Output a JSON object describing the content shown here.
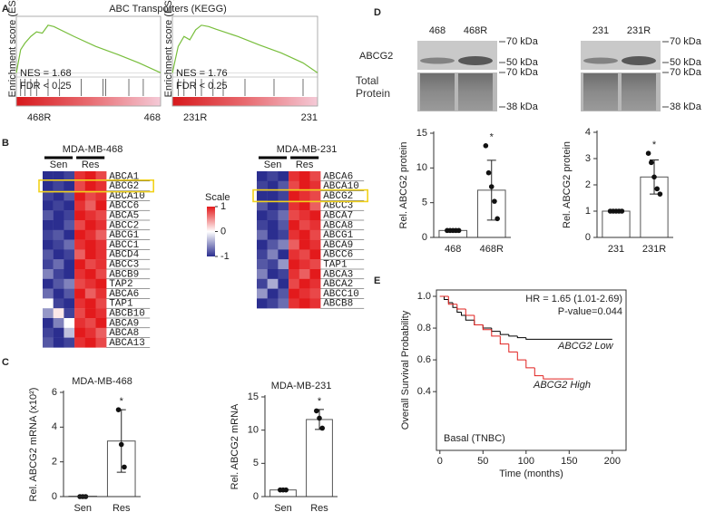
{
  "panel_labels": [
    "A",
    "B",
    "C",
    "D",
    "E"
  ],
  "chart_data": [
    {
      "type": "gsea",
      "title": "ABC Transporters (KEGG)",
      "plots": [
        {
          "y_label": "Enrichment score (ES)",
          "nes": "NES = 1.68",
          "fdr": "FDR < 0.25",
          "left_label": "468R",
          "right_label": "468",
          "color": "#78be3c",
          "xlim": [
            0,
            100
          ],
          "ylim": [
            -0.05,
            0.8
          ],
          "x": [
            0,
            3,
            6,
            10,
            14,
            18,
            22,
            26,
            40,
            55,
            70,
            85,
            100
          ],
          "es": [
            0,
            0.35,
            0.45,
            0.55,
            0.62,
            0.6,
            0.72,
            0.7,
            0.55,
            0.4,
            0.28,
            0.15,
            0
          ],
          "hits": [
            3,
            6,
            10,
            14,
            22,
            30,
            45,
            60,
            62,
            78,
            88
          ]
        },
        {
          "y_label": "Enrichment score (ES)",
          "nes": "NES = 1.76",
          "fdr": "FDR < 0.25",
          "left_label": "231R",
          "right_label": "231",
          "color": "#78be3c",
          "xlim": [
            0,
            100
          ],
          "ylim": [
            -0.05,
            0.8
          ],
          "x": [
            0,
            4,
            8,
            12,
            16,
            20,
            25,
            30,
            45,
            60,
            75,
            90,
            100
          ],
          "es": [
            0,
            0.4,
            0.55,
            0.5,
            0.65,
            0.72,
            0.7,
            0.66,
            0.55,
            0.42,
            0.3,
            0.15,
            0
          ],
          "hits": [
            4,
            8,
            16,
            20,
            28,
            35,
            50,
            70,
            90
          ]
        }
      ]
    },
    {
      "type": "heatmap",
      "title": "MDA-MB-468",
      "groups": [
        "Sen",
        "Res"
      ],
      "colors": [
        "#2b2e8f",
        "#ffffff",
        "#e31a1c"
      ],
      "scale_label": "Scale",
      "scale_ticks": [
        1,
        0,
        -1
      ],
      "genes": [
        "ABCA1",
        "ABCG2",
        "ABCA10",
        "ABCC6",
        "ABCA5",
        "ABCC2",
        "ABCG1",
        "ABCC1",
        "ABCD4",
        "ABCC3",
        "ABCB9",
        "TAP2",
        "ABCA6",
        "TAP1",
        "ABCB10",
        "ABCA9",
        "ABCA8",
        "ABCA13"
      ],
      "values": [
        [
          -1,
          -1,
          -0.9,
          0.9,
          1,
          0.8
        ],
        [
          -1,
          -0.9,
          -1,
          0.8,
          1,
          0.9
        ],
        [
          -0.9,
          -1,
          -0.8,
          1,
          0.8,
          0.9
        ],
        [
          -1,
          -0.9,
          -1,
          0.9,
          0.7,
          1
        ],
        [
          -0.8,
          -1,
          -0.9,
          1,
          0.9,
          0.8
        ],
        [
          -1,
          -1,
          -0.8,
          0.8,
          1,
          0.9
        ],
        [
          -0.9,
          -0.8,
          -1,
          1,
          0.9,
          0.7
        ],
        [
          -1,
          -0.9,
          -0.7,
          0.9,
          1,
          0.9
        ],
        [
          -0.8,
          -1,
          -0.9,
          0.7,
          1,
          0.9
        ],
        [
          -0.9,
          -0.7,
          -1,
          1,
          0.8,
          0.9
        ],
        [
          -0.6,
          -0.9,
          -1,
          0.9,
          1,
          0.8
        ],
        [
          -1,
          -0.8,
          -0.6,
          0.8,
          0.9,
          1
        ],
        [
          -0.7,
          -1,
          -0.8,
          1,
          0.7,
          0.9
        ],
        [
          0,
          -0.9,
          -1,
          0.9,
          1,
          0.8
        ],
        [
          -0.5,
          0.1,
          -0.9,
          0.8,
          1,
          0.9
        ],
        [
          -1,
          -0.6,
          0,
          0.9,
          0.8,
          1
        ],
        [
          -0.9,
          -1,
          -0.3,
          1,
          0.9,
          0.7
        ],
        [
          -0.8,
          -1,
          -0.9,
          0.9,
          1,
          0.8
        ]
      ]
    },
    {
      "type": "heatmap",
      "title": "MDA-MB-231",
      "groups": [
        "Sen",
        "Res"
      ],
      "colors": [
        "#2b2e8f",
        "#ffffff",
        "#e31a1c"
      ],
      "genes": [
        "ABCA6",
        "ABCA10",
        "ABCG2",
        "ABCC3",
        "ABCA7",
        "ABCA8",
        "ABCG1",
        "ABCA9",
        "ABCC6",
        "TAP1",
        "ABCA3",
        "ABCA2",
        "ABCC10",
        "ABCB8"
      ],
      "values": [
        [
          -1,
          -0.9,
          -1,
          0.9,
          1,
          0.8
        ],
        [
          -0.9,
          -1,
          -0.8,
          0.8,
          1,
          0.9
        ],
        [
          -1,
          -1,
          -0.9,
          1,
          0.9,
          0.8
        ],
        [
          -0.8,
          -1,
          -0.9,
          0.9,
          1,
          0.7
        ],
        [
          -1,
          -0.9,
          -0.7,
          0.8,
          0.9,
          1
        ],
        [
          -0.9,
          -1,
          -0.8,
          1,
          0.8,
          0.9
        ],
        [
          -0.7,
          -1,
          -0.9,
          0.9,
          1,
          0.8
        ],
        [
          -1,
          -0.8,
          -0.6,
          0.7,
          1,
          0.9
        ],
        [
          -0.9,
          -0.6,
          -1,
          0.9,
          0.8,
          1
        ],
        [
          -0.8,
          -0.9,
          -0.5,
          1,
          0.9,
          0.8
        ],
        [
          -0.6,
          -1,
          -0.9,
          0.9,
          0.7,
          1
        ],
        [
          -0.9,
          -0.4,
          -1,
          0.8,
          1,
          0.9
        ],
        [
          -0.5,
          -1,
          -0.8,
          1,
          0.9,
          0.8
        ],
        [
          -1,
          -0.9,
          -0.7,
          0.9,
          1,
          0.9
        ]
      ]
    },
    {
      "type": "bar",
      "title": "MDA-MB-468",
      "y_label": "Rel. ABCG2 mRNA (x10²)",
      "categories": [
        "Sen",
        "Res"
      ],
      "values": [
        0.02,
        3.2
      ],
      "errors": [
        0,
        1.8
      ],
      "points": [
        [
          0,
          0,
          0
        ],
        [
          5,
          3,
          1.7
        ]
      ],
      "annotation": "*",
      "ylim": [
        0,
        6
      ],
      "yticks": [
        0,
        2,
        4,
        6
      ]
    },
    {
      "type": "bar",
      "title": "MDA-MB-231",
      "y_label": "Rel. ABCG2 mRNA",
      "categories": [
        "Sen",
        "Res"
      ],
      "values": [
        1,
        11.6
      ],
      "errors": [
        0.1,
        1.5
      ],
      "points": [
        [
          1,
          1,
          1
        ],
        [
          12.9,
          11.8,
          10.3
        ]
      ],
      "annotation": "*",
      "ylim": [
        0,
        15
      ],
      "yticks": [
        0,
        5,
        10,
        15
      ]
    },
    {
      "type": "blot",
      "lanes": [
        "468",
        "468R"
      ],
      "rows": [
        "ABCG2",
        "Total Protein"
      ],
      "markers": [
        "70 kDa",
        "50 kDa",
        "70 kDa",
        "38 kDa"
      ]
    },
    {
      "type": "blot",
      "lanes": [
        "231",
        "231R"
      ],
      "markers": [
        "70 kDa",
        "50 kDa",
        "70 kDa",
        "38 kDa"
      ]
    },
    {
      "type": "bar",
      "y_label": "Rel. ABCG2 protein",
      "categories": [
        "468",
        "468R"
      ],
      "values": [
        1,
        6.8
      ],
      "errors": [
        0.1,
        4.3
      ],
      "points": [
        [
          1,
          1,
          1,
          1,
          1
        ],
        [
          13.2,
          9.3,
          7.3,
          5.2,
          2.7
        ]
      ],
      "annotation": "*",
      "ylim": [
        0,
        15
      ],
      "yticks": [
        0,
        5,
        10,
        15
      ]
    },
    {
      "type": "bar",
      "y_label": "Rel. ABCG2 protein",
      "categories": [
        "231",
        "231R"
      ],
      "values": [
        1,
        2.3
      ],
      "errors": [
        0.03,
        0.65
      ],
      "points": [
        [
          1,
          1,
          1,
          1,
          1
        ],
        [
          3.2,
          2.85,
          2.3,
          1.85,
          1.65
        ]
      ],
      "annotation": "*",
      "ylim": [
        0,
        4
      ],
      "yticks": [
        0,
        1,
        2,
        3,
        4
      ]
    },
    {
      "type": "survival",
      "annotation": "HR = 1.65 (1.01-2.69)",
      "p_value": "P-value=0.044",
      "subtitle": "Basal (TNBC)",
      "x_label": "Time (months)",
      "y_label": "Overall Survival Probability",
      "xlim": [
        -4,
        216
      ],
      "ylim": [
        0.03,
        1.04
      ],
      "xticks": [
        0,
        50,
        100,
        150,
        200
      ],
      "yticks": [
        0.4,
        0.6,
        0.8,
        {
          "value": 1,
          "label": "1.0"
        }
      ],
      "series": [
        {
          "name": "ABCG2 Low",
          "color": "#000000",
          "x": [
            0,
            5,
            10,
            15,
            20,
            25,
            30,
            40,
            50,
            60,
            70,
            80,
            90,
            100,
            200
          ],
          "y": [
            1,
            0.98,
            0.96,
            0.93,
            0.9,
            0.88,
            0.85,
            0.82,
            0.8,
            0.78,
            0.76,
            0.75,
            0.74,
            0.73,
            0.73
          ]
        },
        {
          "name": "ABCG2 High",
          "color": "#e0201e",
          "x": [
            0,
            10,
            20,
            30,
            40,
            50,
            60,
            70,
            80,
            90,
            100,
            110,
            120,
            155
          ],
          "y": [
            1,
            0.95,
            0.92,
            0.88,
            0.82,
            0.79,
            0.75,
            0.7,
            0.65,
            0.6,
            0.55,
            0.5,
            0.48,
            0.48
          ]
        }
      ]
    }
  ]
}
